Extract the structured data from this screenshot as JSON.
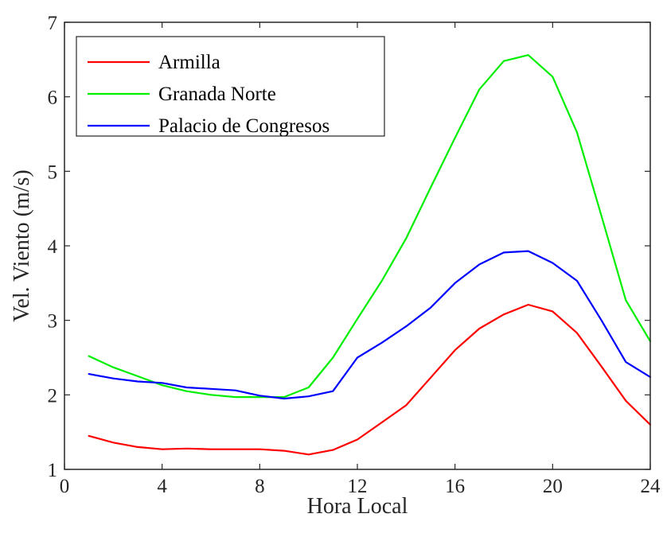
{
  "chart_data": {
    "type": "line",
    "xlabel": "Hora Local",
    "ylabel": "Vel. Viento (m/s)",
    "xlim": [
      0,
      24
    ],
    "ylim": [
      1,
      7
    ],
    "xticks": [
      0,
      4,
      8,
      12,
      16,
      20,
      24
    ],
    "yticks": [
      1,
      2,
      3,
      4,
      5,
      6,
      7
    ],
    "grid": false,
    "legend_position": "top-left",
    "x": [
      1,
      2,
      3,
      4,
      5,
      6,
      7,
      8,
      9,
      10,
      11,
      12,
      13,
      14,
      15,
      16,
      17,
      18,
      19,
      20,
      21,
      22,
      23,
      24
    ],
    "series": [
      {
        "name": "Armilla",
        "color": "#ff0000",
        "values": [
          1.45,
          1.36,
          1.3,
          1.27,
          1.28,
          1.27,
          1.27,
          1.27,
          1.25,
          1.2,
          1.26,
          1.4,
          1.63,
          1.86,
          2.23,
          2.6,
          2.89,
          3.08,
          3.21,
          3.12,
          2.83,
          2.38,
          1.92,
          1.6
        ]
      },
      {
        "name": "Granada Norte",
        "color": "#00ee00",
        "values": [
          2.52,
          2.37,
          2.25,
          2.13,
          2.05,
          2.0,
          1.97,
          1.97,
          1.97,
          2.1,
          2.5,
          3.02,
          3.53,
          4.1,
          4.78,
          5.45,
          6.1,
          6.48,
          6.56,
          6.27,
          5.52,
          4.4,
          3.27,
          2.72
        ]
      },
      {
        "name": "Palacio de Congresos",
        "color": "#0000ff",
        "values": [
          2.28,
          2.22,
          2.18,
          2.16,
          2.1,
          2.08,
          2.06,
          1.99,
          1.95,
          1.98,
          2.05,
          2.5,
          2.7,
          2.92,
          3.17,
          3.5,
          3.75,
          3.91,
          3.93,
          3.77,
          3.53,
          3.0,
          2.44,
          2.24
        ]
      }
    ]
  }
}
